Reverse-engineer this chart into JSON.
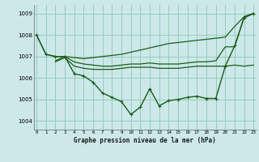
{
  "title": "Graphe pression niveau de la mer (hPa)",
  "background_color": "#cce8e8",
  "grid_color": "#99ccbb",
  "line_color": "#1a5c1a",
  "xlim": [
    -0.3,
    23.3
  ],
  "ylim": [
    1003.6,
    1009.4
  ],
  "yticks": [
    1004,
    1005,
    1006,
    1007,
    1008,
    1009
  ],
  "xticks": [
    0,
    1,
    2,
    3,
    4,
    5,
    6,
    7,
    8,
    9,
    10,
    11,
    12,
    13,
    14,
    15,
    16,
    17,
    18,
    19,
    20,
    21,
    22,
    23
  ],
  "series": [
    {
      "x": [
        0,
        1,
        2,
        3,
        4,
        5,
        6,
        7,
        8,
        9,
        10,
        11,
        12,
        13,
        14,
        15,
        16,
        17,
        18,
        19,
        20,
        21,
        22,
        23
      ],
      "y": [
        1008.0,
        1007.1,
        1007.0,
        1007.0,
        1006.2,
        1006.1,
        1005.8,
        1005.3,
        1005.1,
        1004.9,
        1004.3,
        1004.65,
        1005.5,
        1004.7,
        1004.95,
        1005.0,
        1005.1,
        1005.15,
        1005.05,
        1005.05,
        1006.55,
        1007.5,
        1008.8,
        1009.0
      ]
    },
    {
      "x": [
        0,
        1,
        2,
        3,
        4,
        5,
        6,
        7,
        8,
        9,
        10,
        11,
        12,
        13,
        14,
        15,
        16,
        17,
        18,
        19,
        20,
        21,
        22,
        23
      ],
      "y": [
        1008.0,
        1007.1,
        1007.0,
        1007.0,
        1006.95,
        1006.9,
        1006.95,
        1007.0,
        1007.05,
        1007.1,
        1007.2,
        1007.3,
        1007.4,
        1007.5,
        1007.6,
        1007.65,
        1007.7,
        1007.75,
        1007.8,
        1007.85,
        1007.9,
        1008.4,
        1008.85,
        1009.0
      ]
    },
    {
      "x": [
        2,
        3,
        4,
        5,
        6,
        7,
        8,
        9,
        10,
        11,
        12,
        13,
        14,
        15,
        16,
        17,
        18,
        19,
        20,
        21,
        22,
        23
      ],
      "y": [
        1006.8,
        1007.0,
        1006.75,
        1006.65,
        1006.6,
        1006.55,
        1006.55,
        1006.6,
        1006.65,
        1006.65,
        1006.7,
        1006.65,
        1006.65,
        1006.65,
        1006.7,
        1006.75,
        1006.75,
        1006.8,
        1007.45,
        1007.45,
        1008.85,
        1009.0
      ]
    },
    {
      "x": [
        2,
        3,
        4,
        5,
        6,
        7,
        8,
        9,
        10,
        11,
        12,
        13,
        14,
        15,
        16,
        17,
        18,
        19,
        20,
        21,
        22,
        23
      ],
      "y": [
        1006.75,
        1006.95,
        1006.55,
        1006.45,
        1006.4,
        1006.4,
        1006.4,
        1006.45,
        1006.5,
        1006.5,
        1006.5,
        1006.45,
        1006.45,
        1006.45,
        1006.5,
        1006.55,
        1006.55,
        1006.55,
        1006.55,
        1006.6,
        1006.55,
        1006.6
      ]
    }
  ]
}
